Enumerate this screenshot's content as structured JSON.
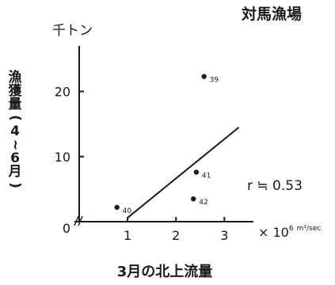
{
  "chart_data": {
    "type": "scatter",
    "title": "対馬漁場",
    "y_unit": "千トン",
    "ylabel_chars": [
      "漁",
      "獲",
      "量",
      "(",
      "4",
      "~",
      "6",
      "月",
      ")"
    ],
    "xlabel": "3月の北上流量",
    "x_unit_prefix": "× 10",
    "x_unit_exp": "6",
    "x_unit_suffix": "m³/sec",
    "xlim": [
      0,
      3.6
    ],
    "ylim": [
      0,
      27
    ],
    "x_ticks": [
      {
        "value": 1,
        "label": "1"
      },
      {
        "value": 2,
        "label": "2"
      },
      {
        "value": 3,
        "label": "3"
      }
    ],
    "y_ticks": [
      {
        "value": 0,
        "label": "0"
      },
      {
        "value": 10,
        "label": "10"
      },
      {
        "value": 20,
        "label": "20"
      }
    ],
    "points": [
      {
        "label": "39",
        "x": 2.58,
        "y": 22.3
      },
      {
        "label": "40",
        "x": 0.78,
        "y": 2.2
      },
      {
        "label": "41",
        "x": 2.42,
        "y": 7.6
      },
      {
        "label": "42",
        "x": 2.36,
        "y": 3.5
      }
    ],
    "regression_line": {
      "x": [
        1.0,
        3.3
      ],
      "y": [
        0.6,
        14.5
      ]
    },
    "annotation": "r ≒ 0.53",
    "grid": false,
    "legend": "none"
  }
}
